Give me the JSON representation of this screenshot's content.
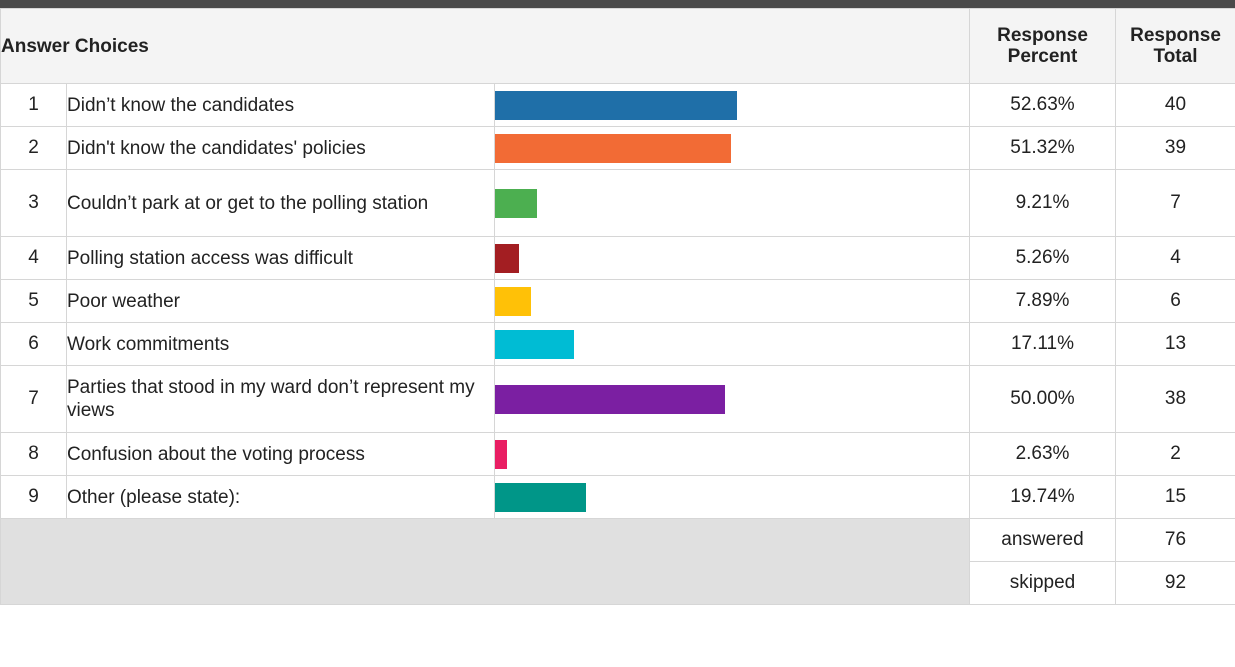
{
  "header": {
    "answer_choices": "Answer Choices",
    "response_percent_line1": "Response",
    "response_percent_line2": "Percent",
    "response_total_line1": "Response",
    "response_total_line2": "Total"
  },
  "chart_data": {
    "type": "bar",
    "categories": [
      "Didn’t know the candidates",
      "Didn't know the candidates' policies",
      "Couldn’t park at or get to the polling station",
      "Polling station access was difficult",
      "Poor weather",
      "Work commitments",
      "Parties that stood in my ward don’t represent my views",
      "Confusion about the voting process",
      "Other (please state):"
    ],
    "values": [
      52.63,
      51.32,
      9.21,
      5.26,
      7.89,
      17.11,
      50.0,
      2.63,
      19.74
    ],
    "xlim": [
      0,
      100
    ]
  },
  "rows": [
    {
      "index": "1",
      "label": "Didn’t know the candidates",
      "percent": "52.63%",
      "total": "40",
      "color": "#1f6fa8"
    },
    {
      "index": "2",
      "label": "Didn't know the candidates' policies",
      "percent": "51.32%",
      "total": "39",
      "color": "#f26b35"
    },
    {
      "index": "3",
      "label": "Couldn’t park at or get to the polling station",
      "percent": "9.21%",
      "total": "7",
      "color": "#4caf50"
    },
    {
      "index": "4",
      "label": "Polling station access was difficult",
      "percent": "5.26%",
      "total": "4",
      "color": "#a31e22"
    },
    {
      "index": "5",
      "label": "Poor weather",
      "percent": "7.89%",
      "total": "6",
      "color": "#ffc107"
    },
    {
      "index": "6",
      "label": "Work commitments",
      "percent": "17.11%",
      "total": "13",
      "color": "#00bcd4"
    },
    {
      "index": "7",
      "label": "Parties that stood in my ward don’t represent my views",
      "percent": "50.00%",
      "total": "38",
      "color": "#7b1fa2"
    },
    {
      "index": "8",
      "label": "Confusion about the voting process",
      "percent": "2.63%",
      "total": "2",
      "color": "#e91e63"
    },
    {
      "index": "9",
      "label": "Other (please state):",
      "percent": "19.74%",
      "total": "15",
      "color": "#009688"
    }
  ],
  "summary": {
    "answered_label": "answered",
    "answered_value": "76",
    "skipped_label": "skipped",
    "skipped_value": "92"
  }
}
